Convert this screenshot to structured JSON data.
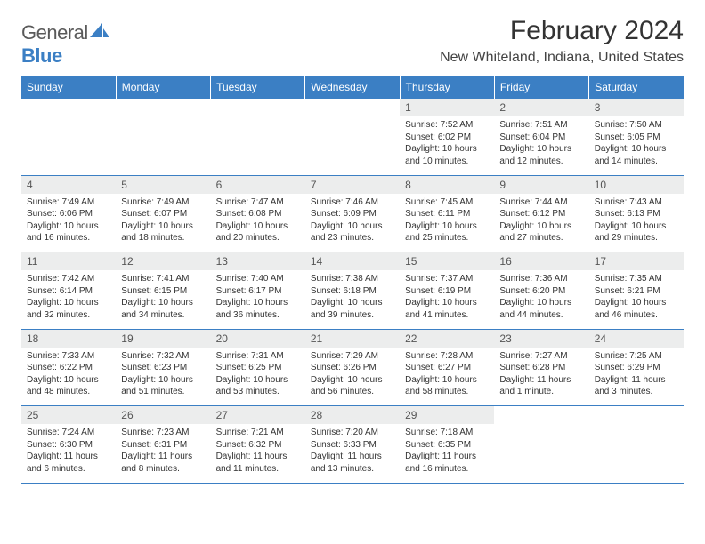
{
  "brand": {
    "part1": "General",
    "part2": "Blue"
  },
  "title": "February 2024",
  "location": "New Whiteland, Indiana, United States",
  "colors": {
    "header_bg": "#3b7fc4",
    "header_text": "#ffffff",
    "daynum_bg": "#eceded",
    "border": "#3b7fc4",
    "text": "#333333"
  },
  "weekdays": [
    "Sunday",
    "Monday",
    "Tuesday",
    "Wednesday",
    "Thursday",
    "Friday",
    "Saturday"
  ],
  "weeks": [
    [
      null,
      null,
      null,
      null,
      {
        "n": "1",
        "sr": "7:52 AM",
        "ss": "6:02 PM",
        "dl": "10 hours and 10 minutes."
      },
      {
        "n": "2",
        "sr": "7:51 AM",
        "ss": "6:04 PM",
        "dl": "10 hours and 12 minutes."
      },
      {
        "n": "3",
        "sr": "7:50 AM",
        "ss": "6:05 PM",
        "dl": "10 hours and 14 minutes."
      }
    ],
    [
      {
        "n": "4",
        "sr": "7:49 AM",
        "ss": "6:06 PM",
        "dl": "10 hours and 16 minutes."
      },
      {
        "n": "5",
        "sr": "7:49 AM",
        "ss": "6:07 PM",
        "dl": "10 hours and 18 minutes."
      },
      {
        "n": "6",
        "sr": "7:47 AM",
        "ss": "6:08 PM",
        "dl": "10 hours and 20 minutes."
      },
      {
        "n": "7",
        "sr": "7:46 AM",
        "ss": "6:09 PM",
        "dl": "10 hours and 23 minutes."
      },
      {
        "n": "8",
        "sr": "7:45 AM",
        "ss": "6:11 PM",
        "dl": "10 hours and 25 minutes."
      },
      {
        "n": "9",
        "sr": "7:44 AM",
        "ss": "6:12 PM",
        "dl": "10 hours and 27 minutes."
      },
      {
        "n": "10",
        "sr": "7:43 AM",
        "ss": "6:13 PM",
        "dl": "10 hours and 29 minutes."
      }
    ],
    [
      {
        "n": "11",
        "sr": "7:42 AM",
        "ss": "6:14 PM",
        "dl": "10 hours and 32 minutes."
      },
      {
        "n": "12",
        "sr": "7:41 AM",
        "ss": "6:15 PM",
        "dl": "10 hours and 34 minutes."
      },
      {
        "n": "13",
        "sr": "7:40 AM",
        "ss": "6:17 PM",
        "dl": "10 hours and 36 minutes."
      },
      {
        "n": "14",
        "sr": "7:38 AM",
        "ss": "6:18 PM",
        "dl": "10 hours and 39 minutes."
      },
      {
        "n": "15",
        "sr": "7:37 AM",
        "ss": "6:19 PM",
        "dl": "10 hours and 41 minutes."
      },
      {
        "n": "16",
        "sr": "7:36 AM",
        "ss": "6:20 PM",
        "dl": "10 hours and 44 minutes."
      },
      {
        "n": "17",
        "sr": "7:35 AM",
        "ss": "6:21 PM",
        "dl": "10 hours and 46 minutes."
      }
    ],
    [
      {
        "n": "18",
        "sr": "7:33 AM",
        "ss": "6:22 PM",
        "dl": "10 hours and 48 minutes."
      },
      {
        "n": "19",
        "sr": "7:32 AM",
        "ss": "6:23 PM",
        "dl": "10 hours and 51 minutes."
      },
      {
        "n": "20",
        "sr": "7:31 AM",
        "ss": "6:25 PM",
        "dl": "10 hours and 53 minutes."
      },
      {
        "n": "21",
        "sr": "7:29 AM",
        "ss": "6:26 PM",
        "dl": "10 hours and 56 minutes."
      },
      {
        "n": "22",
        "sr": "7:28 AM",
        "ss": "6:27 PM",
        "dl": "10 hours and 58 minutes."
      },
      {
        "n": "23",
        "sr": "7:27 AM",
        "ss": "6:28 PM",
        "dl": "11 hours and 1 minute."
      },
      {
        "n": "24",
        "sr": "7:25 AM",
        "ss": "6:29 PM",
        "dl": "11 hours and 3 minutes."
      }
    ],
    [
      {
        "n": "25",
        "sr": "7:24 AM",
        "ss": "6:30 PM",
        "dl": "11 hours and 6 minutes."
      },
      {
        "n": "26",
        "sr": "7:23 AM",
        "ss": "6:31 PM",
        "dl": "11 hours and 8 minutes."
      },
      {
        "n": "27",
        "sr": "7:21 AM",
        "ss": "6:32 PM",
        "dl": "11 hours and 11 minutes."
      },
      {
        "n": "28",
        "sr": "7:20 AM",
        "ss": "6:33 PM",
        "dl": "11 hours and 13 minutes."
      },
      {
        "n": "29",
        "sr": "7:18 AM",
        "ss": "6:35 PM",
        "dl": "11 hours and 16 minutes."
      },
      null,
      null
    ]
  ],
  "labels": {
    "sunrise": "Sunrise:",
    "sunset": "Sunset:",
    "daylight": "Daylight:"
  }
}
